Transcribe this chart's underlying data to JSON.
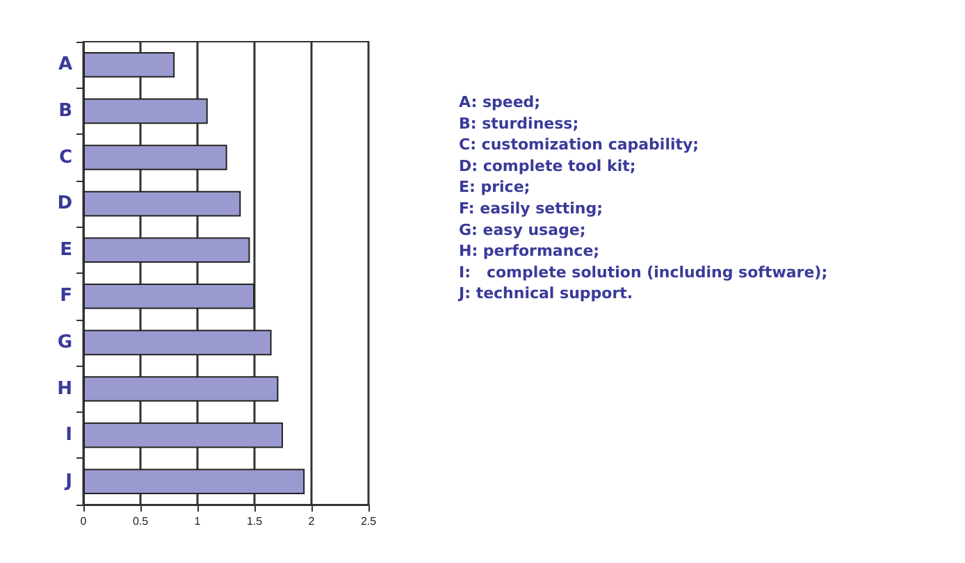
{
  "chart_data": {
    "type": "bar",
    "orientation": "horizontal",
    "categories": [
      "A",
      "B",
      "C",
      "D",
      "E",
      "F",
      "G",
      "H",
      "I",
      "J"
    ],
    "values": [
      0.8,
      1.09,
      1.26,
      1.38,
      1.46,
      1.5,
      1.65,
      1.71,
      1.75,
      1.94
    ],
    "color": "#9a9ad0",
    "xlim": [
      0,
      2.5
    ],
    "xticks": [
      0,
      0.5,
      1,
      1.5,
      2,
      2.5
    ],
    "grid": "x",
    "annotations": [
      "A: speed;",
      "B: sturdiness;",
      "C: customization capability;",
      "D: complete tool kit;",
      "E: price;",
      "F: easily setting;",
      "G: easy usage;",
      "H: performance;",
      "I:   complete solution (including software);",
      "J: technical support."
    ]
  }
}
